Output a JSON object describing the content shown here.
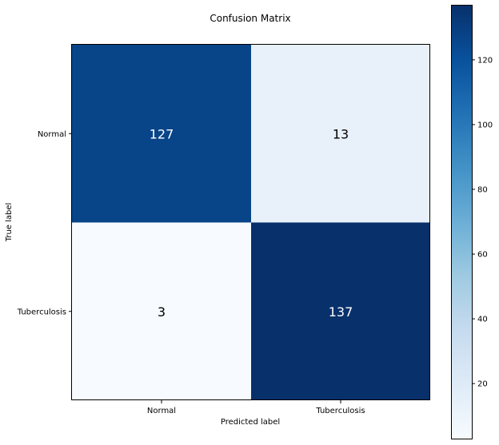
{
  "chart_data": {
    "type": "heatmap",
    "title": "Confusion Matrix",
    "xlabel": "Predicted label",
    "ylabel": "True label",
    "x_categories": [
      "Normal",
      "Tuberculosis"
    ],
    "y_categories": [
      "Normal",
      "Tuberculosis"
    ],
    "values": [
      [
        127,
        13
      ],
      [
        3,
        137
      ]
    ],
    "colormap": "Blues",
    "color_low": "#f7fbff",
    "color_high": "#08306b",
    "value_text_color_dark_cells": "#ffffff",
    "value_text_color_light_cells": "#000000",
    "colorbar": {
      "range": [
        3,
        137
      ],
      "ticks": [
        20,
        40,
        60,
        80,
        100,
        120
      ],
      "tick_labels": [
        "20",
        "40",
        "60",
        "80",
        "100",
        "120"
      ]
    }
  }
}
